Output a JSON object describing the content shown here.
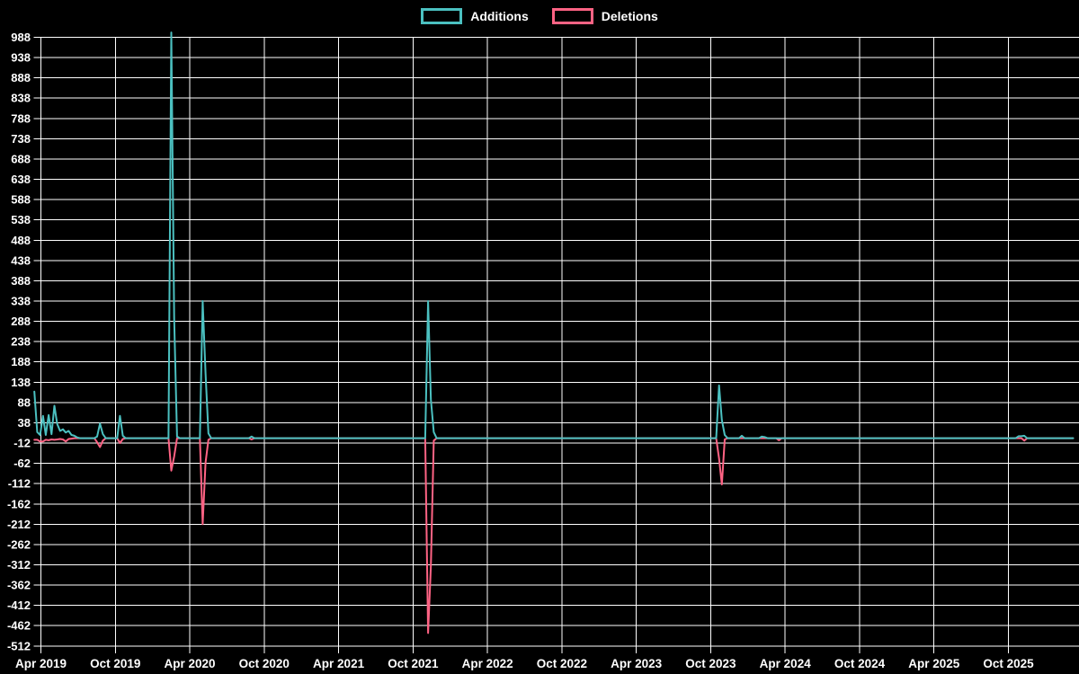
{
  "colors": {
    "background": "#000000",
    "grid": "#ffffff",
    "text": "#ffffff",
    "additions": "#4bc0c0",
    "deletions": "#ff6384"
  },
  "legend": {
    "items": [
      {
        "label": "Additions",
        "color": "#4bc0c0"
      },
      {
        "label": "Deletions",
        "color": "#ff6384"
      }
    ]
  },
  "chart_data": {
    "type": "line",
    "title": "",
    "grid": true,
    "legend_position": "top",
    "x_axis": {
      "tick_labels": [
        "Apr 2019",
        "Oct 2019",
        "Apr 2020",
        "Oct 2020",
        "Apr 2021",
        "Oct 2021",
        "Apr 2022",
        "Oct 2022",
        "Apr 2023",
        "Oct 2023",
        "Apr 2024",
        "Oct 2024",
        "Apr 2025",
        "Oct 2025"
      ],
      "tick_dates": [
        "2019-04-01",
        "2019-10-01",
        "2020-04-01",
        "2020-10-01",
        "2021-04-01",
        "2021-10-01",
        "2022-04-01",
        "2022-10-01",
        "2023-04-01",
        "2023-10-01",
        "2024-04-01",
        "2024-10-01",
        "2025-04-01",
        "2025-10-01"
      ],
      "start_date": "2019-03-16",
      "end_date": "2026-03-08"
    },
    "y_axis": {
      "min": -512,
      "max": 988,
      "step": 50,
      "tick_labels": [
        "988",
        "938",
        "888",
        "838",
        "788",
        "738",
        "688",
        "638",
        "588",
        "538",
        "488",
        "438",
        "388",
        "338",
        "288",
        "238",
        "188",
        "138",
        "88",
        "38",
        "-12",
        "-62",
        "-112",
        "-162",
        "-212",
        "-262",
        "-312",
        "-362",
        "-412",
        "-462",
        "-512"
      ]
    },
    "series": [
      {
        "name": "Additions",
        "color": "#4bc0c0",
        "points": [
          [
            "2019-03-16",
            115
          ],
          [
            "2019-03-23",
            15
          ],
          [
            "2019-03-30",
            8
          ],
          [
            "2019-04-06",
            55
          ],
          [
            "2019-04-13",
            8
          ],
          [
            "2019-04-20",
            57
          ],
          [
            "2019-04-27",
            10
          ],
          [
            "2019-05-04",
            80
          ],
          [
            "2019-05-11",
            35
          ],
          [
            "2019-05-18",
            18
          ],
          [
            "2019-05-25",
            22
          ],
          [
            "2019-06-01",
            14
          ],
          [
            "2019-06-08",
            18
          ],
          [
            "2019-06-15",
            8
          ],
          [
            "2019-06-22",
            6
          ],
          [
            "2019-06-29",
            2
          ],
          [
            "2019-07-06",
            0
          ],
          [
            "2019-08-10",
            0
          ],
          [
            "2019-08-17",
            4
          ],
          [
            "2019-08-24",
            36
          ],
          [
            "2019-08-31",
            10
          ],
          [
            "2019-09-07",
            0
          ],
          [
            "2019-10-05",
            0
          ],
          [
            "2019-10-12",
            55
          ],
          [
            "2019-10-19",
            6
          ],
          [
            "2019-10-26",
            0
          ],
          [
            "2020-02-08",
            0
          ],
          [
            "2020-02-15",
            1000
          ],
          [
            "2020-02-22",
            295
          ],
          [
            "2020-02-29",
            4
          ],
          [
            "2020-03-07",
            0
          ],
          [
            "2020-04-25",
            0
          ],
          [
            "2020-05-02",
            338
          ],
          [
            "2020-05-09",
            160
          ],
          [
            "2020-05-16",
            12
          ],
          [
            "2020-05-23",
            0
          ],
          [
            "2020-08-23",
            0
          ],
          [
            "2020-08-30",
            4
          ],
          [
            "2020-09-06",
            0
          ],
          [
            "2021-10-30",
            0
          ],
          [
            "2021-11-06",
            338
          ],
          [
            "2021-11-13",
            95
          ],
          [
            "2021-11-20",
            15
          ],
          [
            "2021-11-27",
            0
          ],
          [
            "2023-10-14",
            0
          ],
          [
            "2023-10-21",
            130
          ],
          [
            "2023-10-28",
            45
          ],
          [
            "2023-11-04",
            8
          ],
          [
            "2023-11-11",
            0
          ],
          [
            "2023-12-09",
            0
          ],
          [
            "2023-12-16",
            6
          ],
          [
            "2023-12-23",
            0
          ],
          [
            "2024-01-27",
            0
          ],
          [
            "2024-02-03",
            4
          ],
          [
            "2024-02-10",
            3
          ],
          [
            "2024-02-17",
            0
          ],
          [
            "2025-10-18",
            0
          ],
          [
            "2025-10-25",
            5
          ],
          [
            "2025-11-01",
            5
          ],
          [
            "2025-11-08",
            6
          ],
          [
            "2025-11-15",
            0
          ],
          [
            "2026-03-08",
            0
          ]
        ]
      },
      {
        "name": "Deletions",
        "color": "#ff6384",
        "points": [
          [
            "2019-03-16",
            -4
          ],
          [
            "2019-03-23",
            -4
          ],
          [
            "2019-03-30",
            -8
          ],
          [
            "2019-04-06",
            -8
          ],
          [
            "2019-04-13",
            -4
          ],
          [
            "2019-04-20",
            -5
          ],
          [
            "2019-04-27",
            -3
          ],
          [
            "2019-05-04",
            -4
          ],
          [
            "2019-05-11",
            -3
          ],
          [
            "2019-05-18",
            -2
          ],
          [
            "2019-05-25",
            -3
          ],
          [
            "2019-06-01",
            -8
          ],
          [
            "2019-06-08",
            -2
          ],
          [
            "2019-06-15",
            -1
          ],
          [
            "2019-06-22",
            0
          ],
          [
            "2019-08-10",
            0
          ],
          [
            "2019-08-17",
            -10
          ],
          [
            "2019-08-24",
            -22
          ],
          [
            "2019-08-31",
            -6
          ],
          [
            "2019-09-07",
            0
          ],
          [
            "2019-10-05",
            0
          ],
          [
            "2019-10-12",
            -12
          ],
          [
            "2019-10-19",
            -2
          ],
          [
            "2019-10-26",
            0
          ],
          [
            "2020-02-08",
            0
          ],
          [
            "2020-02-15",
            -80
          ],
          [
            "2020-02-22",
            -45
          ],
          [
            "2020-02-29",
            0
          ],
          [
            "2020-04-25",
            0
          ],
          [
            "2020-05-02",
            -212
          ],
          [
            "2020-05-09",
            -60
          ],
          [
            "2020-05-16",
            -4
          ],
          [
            "2020-05-23",
            0
          ],
          [
            "2020-08-23",
            0
          ],
          [
            "2020-08-30",
            -3
          ],
          [
            "2020-09-06",
            0
          ],
          [
            "2021-10-30",
            0
          ],
          [
            "2021-11-06",
            -480
          ],
          [
            "2021-11-13",
            -315
          ],
          [
            "2021-11-20",
            -6
          ],
          [
            "2021-11-27",
            0
          ],
          [
            "2023-10-14",
            0
          ],
          [
            "2023-10-21",
            -50
          ],
          [
            "2023-10-28",
            -114
          ],
          [
            "2023-11-04",
            -3
          ],
          [
            "2023-11-11",
            0
          ],
          [
            "2024-03-09",
            0
          ],
          [
            "2024-03-16",
            -5
          ],
          [
            "2024-03-23",
            0
          ],
          [
            "2025-11-01",
            0
          ],
          [
            "2025-11-08",
            -6
          ],
          [
            "2025-11-15",
            0
          ],
          [
            "2026-03-08",
            0
          ]
        ]
      }
    ]
  }
}
